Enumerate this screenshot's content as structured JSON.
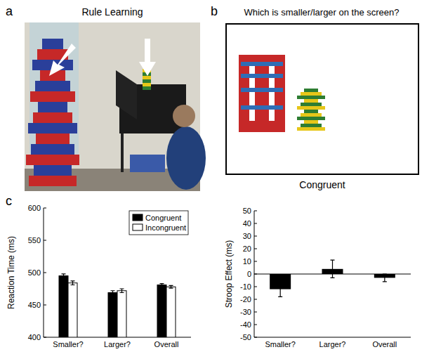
{
  "panels": {
    "a": {
      "label": "a",
      "title": "Rule Learning"
    },
    "b": {
      "label": "b",
      "title": "Which is smaller/larger on the screen?",
      "caption": "Congruent"
    },
    "c": {
      "label": "c"
    }
  },
  "chart_data": [
    {
      "type": "bar",
      "y_label": "Reaction Time (ms)",
      "categories": [
        "Smaller?",
        "Larger?",
        "Overall"
      ],
      "series": [
        {
          "name": "Congruent",
          "color": "#000000",
          "values": [
            495,
            469,
            481
          ],
          "errors": [
            3,
            3,
            2
          ]
        },
        {
          "name": "Incongruent",
          "color": "#ffffff",
          "values": [
            484,
            472,
            478
          ],
          "errors": [
            3,
            3,
            2
          ]
        }
      ],
      "ylim": [
        400,
        600
      ],
      "yticks": [
        400,
        450,
        500,
        550,
        600
      ],
      "legend": "top-right"
    },
    {
      "type": "bar",
      "y_label": "Stroop Effect (ms)",
      "categories": [
        "Smaller?",
        "Larger?",
        "Overall"
      ],
      "values": [
        -12,
        4,
        -3
      ],
      "errors": [
        6,
        7,
        3
      ],
      "color": "#000000",
      "ylim": [
        -50,
        50
      ],
      "yticks": [
        -50,
        -40,
        -30,
        -20,
        -10,
        0,
        10,
        20,
        30,
        40,
        50
      ]
    }
  ]
}
